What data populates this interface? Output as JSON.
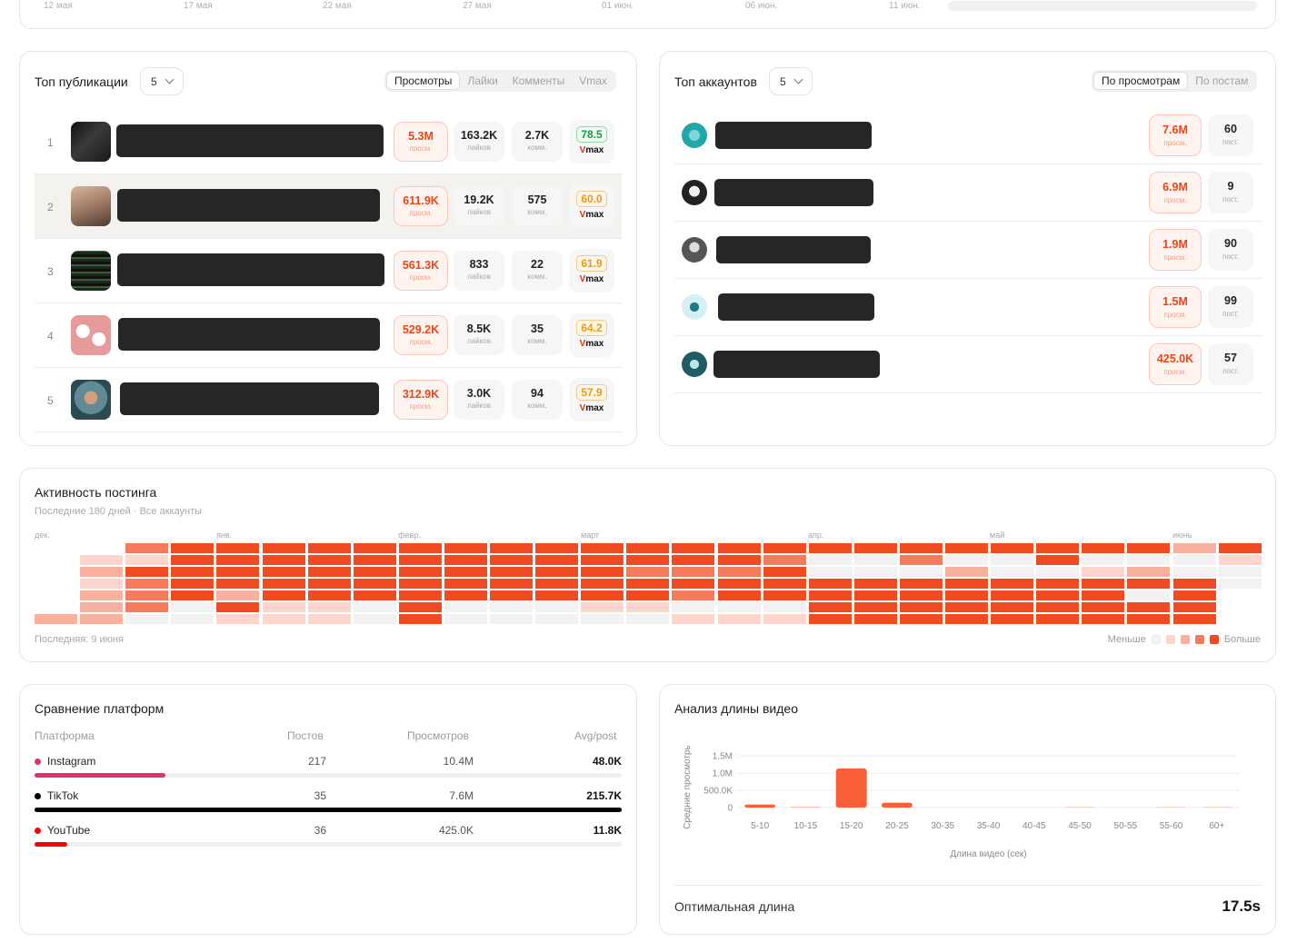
{
  "colors": {
    "accent": "#f04a1f",
    "instagram": "#e1306c",
    "tiktok": "#000000",
    "youtube": "#ff0000"
  },
  "trend": {
    "dates": [
      "12 мая",
      "17 мая",
      "22 мая",
      "27 мая",
      "01 июн.",
      "06 июн.",
      "11 июн."
    ]
  },
  "top_posts": {
    "title": "Топ публикации",
    "count": "5",
    "tabs": [
      "Просмотры",
      "Лайки",
      "Комменты",
      "Vmax"
    ],
    "active_tab": "Просмотры",
    "unit_views": "просм.",
    "unit_likes": "лайков",
    "unit_comments": "комм.",
    "vmax_label_v": "V",
    "vmax_label_rest": "max",
    "rows": [
      {
        "rank": "1",
        "views": "5.3M",
        "likes": "163.2K",
        "comments": "2.7K",
        "vmax": "78.5"
      },
      {
        "rank": "2",
        "views": "611.9K",
        "likes": "19.2K",
        "comments": "575",
        "vmax": "60.0"
      },
      {
        "rank": "3",
        "views": "561.3K",
        "likes": "833",
        "comments": "22",
        "vmax": "61.9"
      },
      {
        "rank": "4",
        "views": "529.2K",
        "likes": "8.5K",
        "comments": "35",
        "vmax": "64.2"
      },
      {
        "rank": "5",
        "views": "312.9K",
        "likes": "3.0K",
        "comments": "94",
        "vmax": "57.9"
      }
    ]
  },
  "top_accounts": {
    "title": "Топ аккаунтов",
    "count": "5",
    "tabs": [
      "По просмотрам",
      "По постам"
    ],
    "active_tab": "По просмотрам",
    "unit_views": "просм.",
    "unit_posts": "пост.",
    "rows": [
      {
        "views": "7.6M",
        "posts": "60"
      },
      {
        "views": "6.9M",
        "posts": "9"
      },
      {
        "views": "1.9M",
        "posts": "90"
      },
      {
        "views": "1.5M",
        "posts": "99"
      },
      {
        "views": "425.0K",
        "posts": "57"
      }
    ]
  },
  "activity": {
    "title": "Активность постинга",
    "subtitle": "Последние 180 дней · Все аккаунты",
    "months": [
      "дек.",
      "янв.",
      "февр.",
      "март",
      "апр.",
      "май",
      "июнь"
    ],
    "last": "Последняя: 9 июня",
    "legend_less": "Меньше",
    "legend_more": "Больше",
    "levels": [
      "#f2f2f2",
      "#fdd5cc",
      "#f9b19f",
      "#f47c5d",
      "#ef4a20"
    ],
    "grid": [
      [
        -1,
        -1,
        -1,
        -1,
        -1,
        -1,
        2
      ],
      [
        -1,
        1,
        2,
        1,
        2,
        2,
        2
      ],
      [
        3,
        1,
        4,
        3,
        3,
        3,
        0
      ],
      [
        4,
        4,
        4,
        4,
        4,
        0,
        0
      ],
      [
        4,
        4,
        4,
        4,
        2,
        4,
        1
      ],
      [
        4,
        4,
        4,
        4,
        4,
        1,
        1
      ],
      [
        4,
        4,
        4,
        4,
        4,
        1,
        1
      ],
      [
        4,
        4,
        4,
        4,
        4,
        0,
        0
      ],
      [
        4,
        4,
        4,
        4,
        4,
        4,
        4
      ],
      [
        4,
        4,
        4,
        4,
        4,
        0,
        0
      ],
      [
        4,
        4,
        4,
        4,
        4,
        0,
        0
      ],
      [
        4,
        4,
        4,
        4,
        4,
        0,
        0
      ],
      [
        4,
        4,
        4,
        4,
        4,
        1,
        0
      ],
      [
        4,
        4,
        3,
        4,
        4,
        1,
        0
      ],
      [
        4,
        4,
        3,
        4,
        3,
        0,
        1
      ],
      [
        4,
        4,
        3,
        4,
        4,
        0,
        1
      ],
      [
        4,
        3,
        4,
        4,
        4,
        0,
        1
      ],
      [
        4,
        0,
        0,
        4,
        4,
        4,
        4
      ],
      [
        4,
        0,
        0,
        4,
        4,
        4,
        4
      ],
      [
        4,
        3,
        0,
        4,
        4,
        4,
        4
      ],
      [
        4,
        0,
        2,
        4,
        4,
        4,
        4
      ],
      [
        4,
        0,
        0,
        4,
        4,
        4,
        4
      ],
      [
        4,
        4,
        0,
        4,
        4,
        4,
        4
      ],
      [
        4,
        0,
        1,
        4,
        4,
        4,
        4
      ],
      [
        4,
        0,
        2,
        4,
        0,
        4,
        4
      ],
      [
        2,
        0,
        0,
        4,
        4,
        4,
        4
      ],
      [
        4,
        1,
        0,
        0,
        -1,
        -1,
        -1
      ]
    ]
  },
  "platforms": {
    "title": "Сравнение платформ",
    "headers": [
      "Платформа",
      "Постов",
      "Просмотров",
      "Avg/post"
    ],
    "rows": [
      {
        "name": "Instagram",
        "posts": "217",
        "views": "10.4M",
        "avg": "48.0K",
        "share": 0.223,
        "color": "#e1306c"
      },
      {
        "name": "TikTok",
        "posts": "35",
        "views": "7.6M",
        "avg": "215.7K",
        "share": 1.0,
        "color": "#000000"
      },
      {
        "name": "YouTube",
        "posts": "36",
        "views": "425.0K",
        "avg": "11.8K",
        "share": 0.055,
        "color": "#ff0000"
      }
    ]
  },
  "video_length": {
    "title": "Анализ длины видео",
    "optimal_label": "Оптимальная длина",
    "optimal_value": "17.5s",
    "chart_data": {
      "type": "bar",
      "categories": [
        "5-10",
        "10-15",
        "15-20",
        "20-25",
        "30-35",
        "35-40",
        "40-45",
        "45-50",
        "50-55",
        "55-60",
        "60+"
      ],
      "values": [
        90000,
        10000,
        1130000,
        140000,
        0,
        0,
        0,
        5000,
        0,
        5000,
        5000
      ],
      "xlabel": "Длина видео (сек)",
      "ylabel": "Средние просмотрь",
      "yticks": [
        "0",
        "500.0K",
        "1.0M",
        "1.5M"
      ],
      "ylim": [
        0,
        1500000
      ],
      "grid": true
    }
  }
}
